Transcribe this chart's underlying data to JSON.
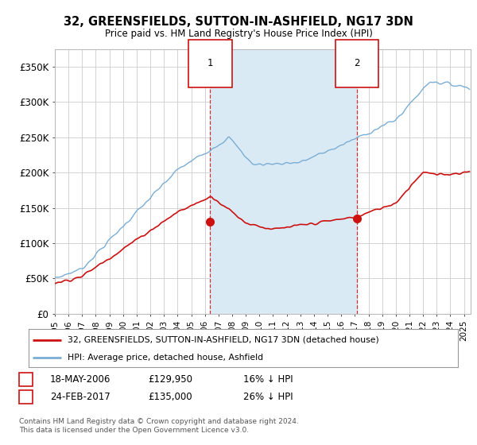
{
  "title": "32, GREENSFIELDS, SUTTON-IN-ASHFIELD, NG17 3DN",
  "subtitle": "Price paid vs. HM Land Registry's House Price Index (HPI)",
  "ylabel_ticks": [
    "£0",
    "£50K",
    "£100K",
    "£150K",
    "£200K",
    "£250K",
    "£300K",
    "£350K"
  ],
  "ytick_values": [
    0,
    50000,
    100000,
    150000,
    200000,
    250000,
    300000,
    350000
  ],
  "ylim": [
    0,
    375000
  ],
  "xlim_start": 1995.0,
  "xlim_end": 2025.5,
  "hpi_color": "#7aadd4",
  "hpi_fill_color": "#daeaf5",
  "price_color": "#cc1111",
  "marker1_x": 2006.38,
  "marker1_y": 129950,
  "marker2_x": 2017.15,
  "marker2_y": 135000,
  "marker1_label": "1",
  "marker2_label": "2",
  "legend_line1": "32, GREENSFIELDS, SUTTON-IN-ASHFIELD, NG17 3DN (detached house)",
  "legend_line2": "HPI: Average price, detached house, Ashfield",
  "footnote": "Contains HM Land Registry data © Crown copyright and database right 2024.\nThis data is licensed under the Open Government Licence v3.0.",
  "background_color": "#ffffff",
  "grid_color": "#cccccc"
}
